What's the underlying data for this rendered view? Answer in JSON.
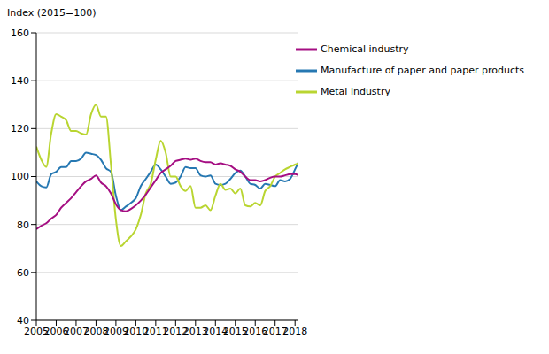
{
  "chart_data": {
    "type": "line",
    "y_label": "Index (2015=100)",
    "x": [
      2005,
      2005.25,
      2005.5,
      2005.75,
      2006,
      2006.25,
      2006.5,
      2006.75,
      2007,
      2007.25,
      2007.5,
      2007.75,
      2008,
      2008.25,
      2008.5,
      2008.75,
      2009,
      2009.25,
      2009.5,
      2009.75,
      2010,
      2010.25,
      2010.5,
      2010.75,
      2011,
      2011.25,
      2011.5,
      2011.75,
      2012,
      2012.25,
      2012.5,
      2012.75,
      2013,
      2013.25,
      2013.5,
      2013.75,
      2014,
      2014.25,
      2014.5,
      2014.75,
      2015,
      2015.25,
      2015.5,
      2015.75,
      2016,
      2016.25,
      2016.5,
      2016.75,
      2017,
      2017.25,
      2017.5,
      2017.75,
      2018,
      2018.17
    ],
    "series": [
      {
        "name": "Manufacture of paper and paper products",
        "color": "#2678b2",
        "values": [
          98,
          96,
          95.5,
          101,
          102,
          104,
          104,
          106.5,
          106.5,
          107.5,
          110,
          109.5,
          109,
          107,
          103.5,
          102,
          92,
          86,
          87.5,
          89,
          91,
          96,
          99,
          102,
          105,
          103,
          100,
          97,
          97.5,
          100,
          104,
          103.5,
          103.5,
          100.5,
          100,
          100.5,
          97,
          96.5,
          97,
          99,
          101.5,
          102.5,
          100,
          97,
          96.5,
          95,
          97,
          96.5,
          96,
          98.5,
          98,
          99,
          103,
          106
        ]
      },
      {
        "name": "Metal industry",
        "color": "#b9d531",
        "values": [
          112.5,
          107,
          104,
          118,
          126,
          125,
          123.5,
          119,
          119,
          118,
          117.5,
          126,
          130,
          125,
          125,
          105,
          82,
          71,
          73,
          75,
          78,
          84,
          93,
          97,
          107,
          115,
          110,
          100,
          100,
          96,
          94,
          96,
          87,
          87,
          88,
          86,
          92,
          97,
          94.5,
          95,
          93,
          95,
          88,
          87.5,
          89,
          88,
          94,
          96,
          100,
          101.5,
          103,
          104,
          105,
          105.5
        ]
      },
      {
        "name": "Chemical industry",
        "color": "#a50e82",
        "values": [
          78,
          79.5,
          80.5,
          82.5,
          84,
          87,
          89,
          91,
          93.5,
          96,
          98,
          99,
          100.5,
          97.5,
          96,
          93,
          88.5,
          86,
          85.5,
          86.5,
          88,
          90,
          92.5,
          95.5,
          98.5,
          101.5,
          103,
          104.5,
          106.5,
          107,
          107.5,
          107,
          107.5,
          106.5,
          106,
          106,
          105,
          105.5,
          105,
          104.5,
          103,
          102,
          100,
          98.5,
          98.5,
          98,
          98.5,
          99.5,
          100,
          100,
          100.5,
          101,
          101,
          100.5
        ]
      }
    ],
    "xlim": [
      2005,
      2018.17
    ],
    "xticks": [
      2005,
      2006,
      2007,
      2008,
      2009,
      2010,
      2011,
      2012,
      2013,
      2014,
      2015,
      2016,
      2017,
      2018
    ],
    "ylim": [
      40,
      160
    ],
    "yticks": [
      40,
      60,
      80,
      100,
      120,
      140,
      160
    ],
    "grid": true,
    "legend": "top-right"
  }
}
